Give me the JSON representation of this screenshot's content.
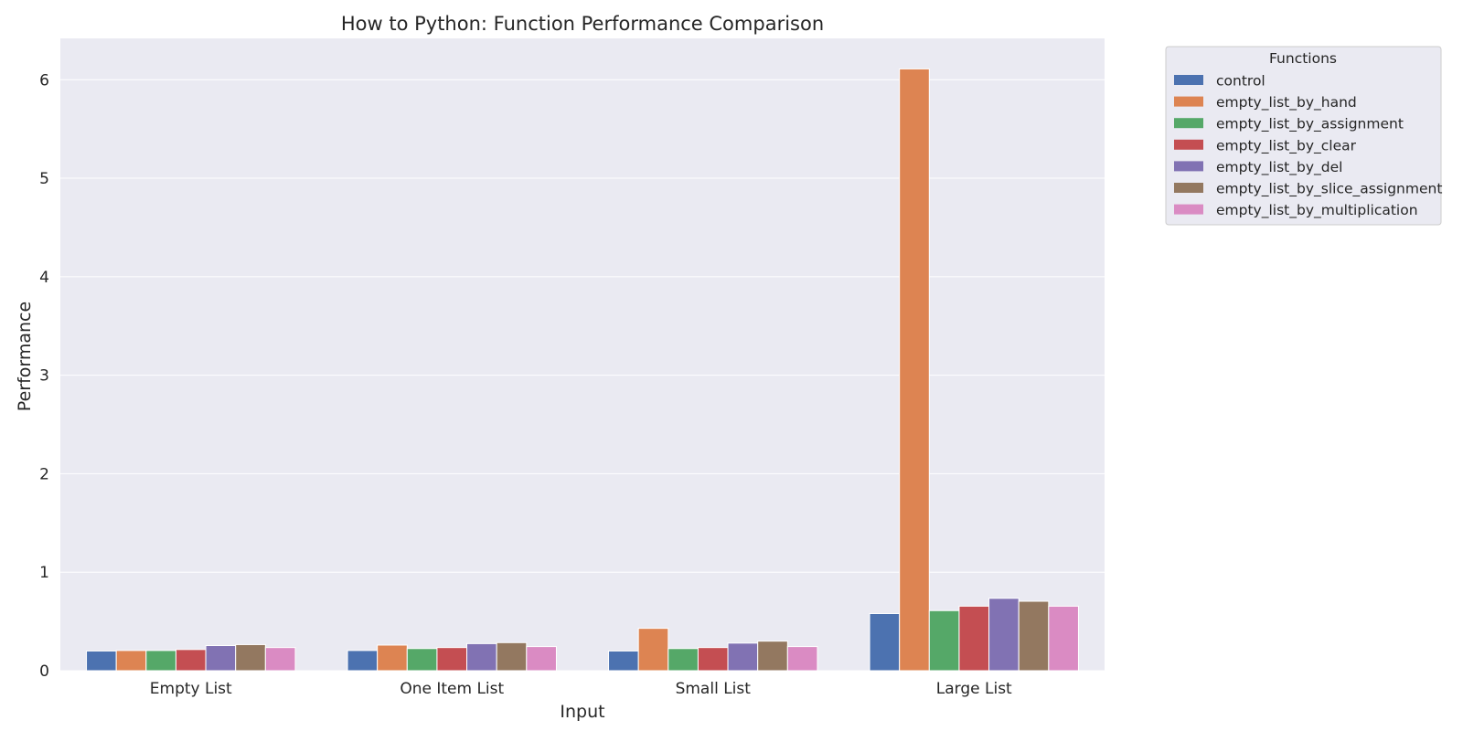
{
  "chart_data": {
    "type": "bar",
    "title": "How to Python: Function Performance Comparison",
    "xlabel": "Input",
    "ylabel": "Performance",
    "categories": [
      "Empty List",
      "One Item List",
      "Small List",
      "Large List"
    ],
    "ylim": [
      0,
      6.42
    ],
    "yticks": [
      0,
      1,
      2,
      3,
      4,
      5,
      6
    ],
    "grid": true,
    "legend": {
      "title": "Functions",
      "placement": "outside-top-right"
    },
    "series": [
      {
        "name": "control",
        "color": "#4c72b0",
        "values": [
          0.2,
          0.205,
          0.2,
          0.58
        ]
      },
      {
        "name": "empty_list_by_hand",
        "color": "#dd8452",
        "values": [
          0.205,
          0.26,
          0.43,
          6.11
        ]
      },
      {
        "name": "empty_list_by_assignment",
        "color": "#55a868",
        "values": [
          0.205,
          0.225,
          0.225,
          0.61
        ]
      },
      {
        "name": "empty_list_by_clear",
        "color": "#c44e52",
        "values": [
          0.215,
          0.235,
          0.235,
          0.655
        ]
      },
      {
        "name": "empty_list_by_del",
        "color": "#8172b3",
        "values": [
          0.255,
          0.275,
          0.28,
          0.735
        ]
      },
      {
        "name": "empty_list_by_slice_assignment",
        "color": "#937860",
        "values": [
          0.265,
          0.285,
          0.3,
          0.705
        ]
      },
      {
        "name": "empty_list_by_multiplication",
        "color": "#da8bc3",
        "values": [
          0.235,
          0.245,
          0.245,
          0.655
        ]
      }
    ]
  }
}
